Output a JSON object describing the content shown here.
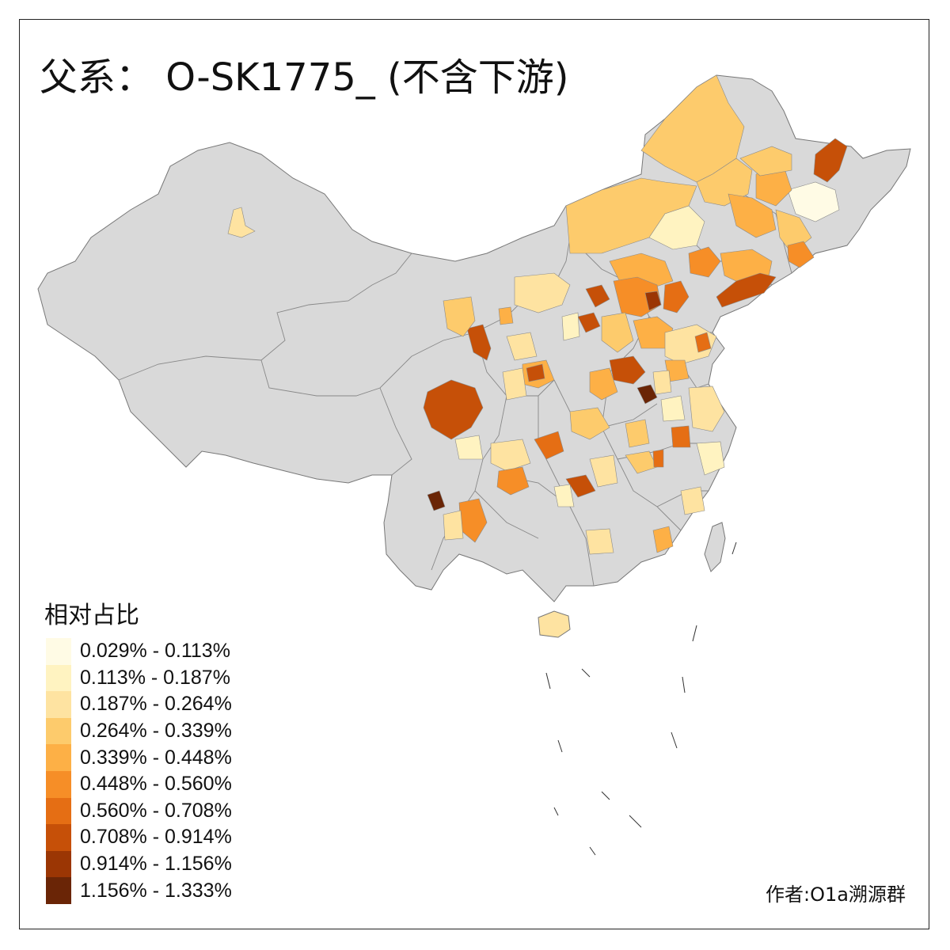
{
  "title": "父系： O-SK1775_ (不含下游)",
  "legend": {
    "title": "相对占比",
    "items": [
      {
        "label": "0.029% - 0.113%",
        "color": "#FFFBE5"
      },
      {
        "label": "0.113% - 0.187%",
        "color": "#FFF3C1"
      },
      {
        "label": "0.187% - 0.264%",
        "color": "#FEE3A1"
      },
      {
        "label": "0.264% - 0.339%",
        "color": "#FDCB6C"
      },
      {
        "label": "0.339% - 0.448%",
        "color": "#FDB046"
      },
      {
        "label": "0.448% - 0.560%",
        "color": "#F68E27"
      },
      {
        "label": "0.560% - 0.708%",
        "color": "#E56E14"
      },
      {
        "label": "0.708% - 0.914%",
        "color": "#C65008"
      },
      {
        "label": "0.914% - 1.156%",
        "color": "#9B3604"
      },
      {
        "label": "1.156% - 1.333%",
        "color": "#6A2506"
      }
    ]
  },
  "credit": "作者:O1a溯源群",
  "colors": {
    "no_data": "#D9D9D9",
    "border": "#7A7A7A"
  }
}
